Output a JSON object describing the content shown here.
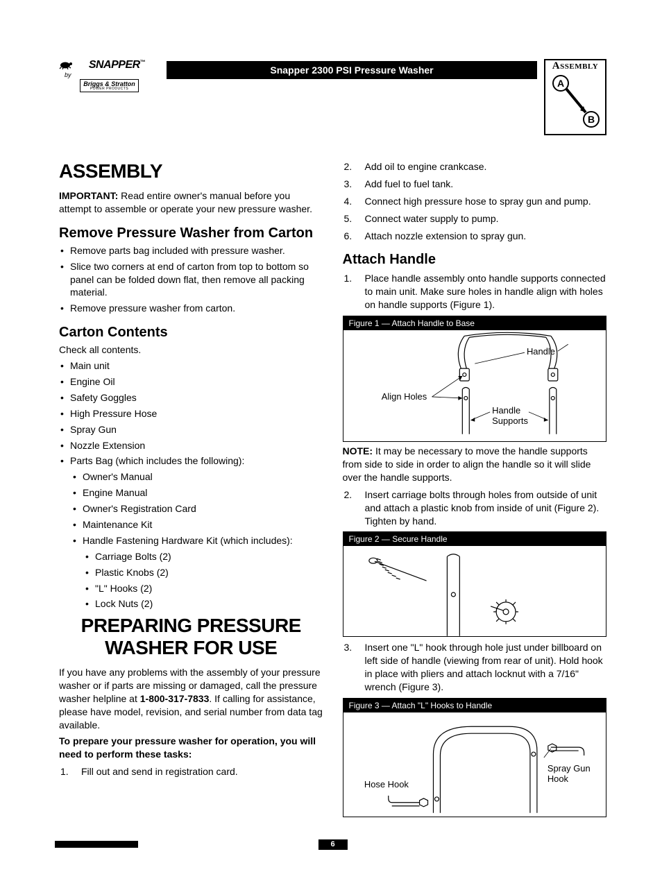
{
  "header": {
    "brand_main": "SNAPPER",
    "brand_tm": "™",
    "brand_by": "by",
    "brand_sub": "Briggs & Stratton",
    "brand_sub2": "POWER PRODUCTS",
    "title_bar": "Snapper 2300 PSI Pressure Washer",
    "assembly_label": "Assembly",
    "assembly_a": "A",
    "assembly_b": "B"
  },
  "left": {
    "h1_assembly": "ASSEMBLY",
    "important_label": "IMPORTANT:",
    "important_text": " Read entire owner's manual before you attempt to assemble or operate your new pressure washer.",
    "h2_remove": "Remove Pressure Washer from Carton",
    "remove_items": [
      "Remove parts bag included with pressure washer.",
      "Slice two corners at end of carton from top to bottom so panel can be folded down flat, then remove all packing material.",
      "Remove pressure washer from carton."
    ],
    "h2_contents": "Carton Contents",
    "contents_intro": "Check all contents.",
    "contents_items": [
      "Main unit",
      "Engine Oil",
      "Safety Goggles",
      "High Pressure Hose",
      "Spray Gun",
      "Nozzle Extension"
    ],
    "parts_bag_line": "Parts Bag (which includes the following):",
    "parts_bag_items": [
      "Owner's Manual",
      "Engine Manual",
      "Owner's Registration Card",
      "Maintenance Kit"
    ],
    "hwkit_line": "Handle Fastening Hardware Kit (which includes):",
    "hwkit_items": [
      "Carriage Bolts (2)",
      "Plastic Knobs (2)",
      "\"L\" Hooks (2)",
      "Lock Nuts (2)"
    ],
    "h1_prepare": "PREPARING PRESSURE WASHER FOR USE",
    "prepare_p1a": "If you have any problems with the assembly of your pressure washer or if parts are missing or damaged, call the pressure washer helpline at ",
    "prepare_phone": "1-800-317-7833",
    "prepare_p1b": ". If calling for assistance, please have model, revision, and serial number from data tag available.",
    "prepare_bold": "To prepare your pressure washer for operation, you will need to perform these tasks:",
    "prepare_step1": "Fill out and send in registration card."
  },
  "right": {
    "steps_top": [
      "Add oil to engine crankcase.",
      "Add fuel to fuel tank.",
      "Connect high pressure hose to spray gun and pump.",
      "Connect water supply to pump.",
      "Attach nozzle extension to spray gun."
    ],
    "h2_attach": "Attach Handle",
    "attach_step1": "Place handle assembly onto handle supports connected to main unit. Make sure holes in handle align with holes on handle supports (Figure 1).",
    "fig1_caption": "Figure 1 — Attach Handle to Base",
    "fig1_labels": {
      "handle": "Handle",
      "align": "Align Holes",
      "supports": "Handle\nSupports"
    },
    "note_label": "NOTE:",
    "note_text": " It may be necessary to move the handle supports from side to side in order to align the handle so it will slide over the handle supports.",
    "attach_step2": "Insert carriage bolts through holes from outside of unit and attach a plastic knob from inside of unit (Figure 2). Tighten by hand.",
    "fig2_caption": "Figure 2 — Secure Handle",
    "attach_step3": "Insert one \"L\" hook through hole just under billboard on left side of handle (viewing from rear of unit). Hold hook in place with pliers and attach locknut with a 7/16\" wrench (Figure 3).",
    "fig3_caption": "Figure 3 — Attach \"L\" Hooks to Handle",
    "fig3_labels": {
      "hose": "Hose Hook",
      "spray": "Spray Gun\nHook"
    }
  },
  "footer": {
    "page": "6"
  },
  "style": {
    "fig1_h": 160,
    "fig2_h": 130,
    "fig3_h": 150,
    "colors": {
      "text": "#000000",
      "bg": "#ffffff",
      "bar": "#000000"
    }
  }
}
